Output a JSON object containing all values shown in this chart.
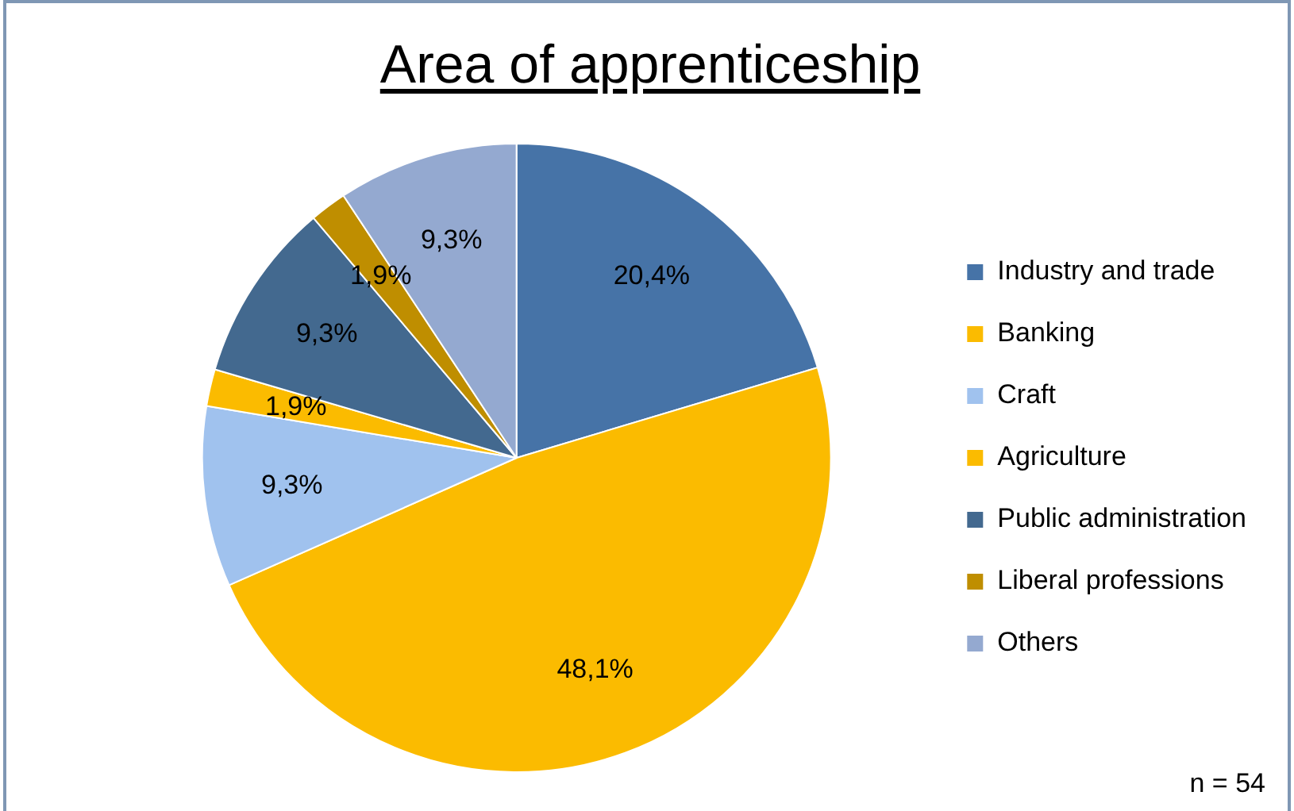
{
  "chart_data": {
    "type": "pie",
    "title": "Area of apprenticeship",
    "categories": [
      "Industry and trade",
      "Banking",
      "Craft",
      "Agriculture",
      "Public administration",
      "Liberal professions",
      "Others"
    ],
    "values": [
      20.4,
      48.1,
      9.3,
      1.9,
      9.3,
      1.9,
      9.3
    ],
    "value_labels": [
      "20,4%",
      "48,1%",
      "9,3%",
      "1,9%",
      "9,3%",
      "1,9%",
      "9,3%"
    ],
    "colors": [
      "#4673a7",
      "#fbbb00",
      "#a0c2ee",
      "#fbbb00",
      "#43698f",
      "#bf8e00",
      "#94a9d0"
    ],
    "legend": "right",
    "annotations": [
      "n = 54"
    ]
  }
}
